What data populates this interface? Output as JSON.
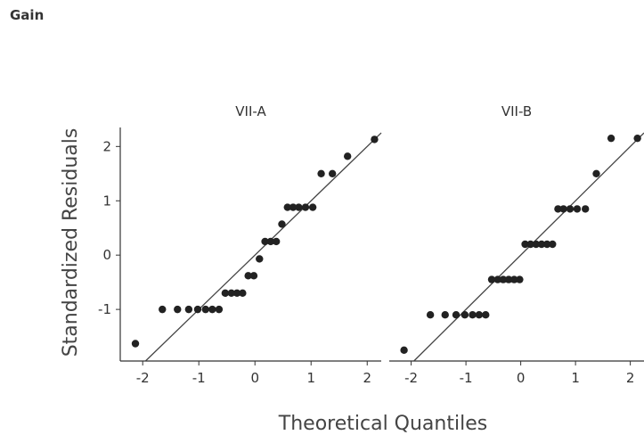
{
  "page": {
    "title": "Gain"
  },
  "chart_data": {
    "type": "scatter",
    "xlabel": "Theoretical Quantiles",
    "ylabel": "Standardized Residuals",
    "xlim": [
      -2.4,
      2.25
    ],
    "ylim": [
      -1.95,
      2.35
    ],
    "xticks": [
      -2,
      -1,
      0,
      1,
      2
    ],
    "yticks": [
      -1,
      0,
      1,
      2
    ],
    "grid": false,
    "point_color": "#222222",
    "line_color": "#444444",
    "panels": [
      {
        "title": "VII-A",
        "show_yaxis": true,
        "reference_line": {
          "slope": 1.0,
          "intercept": 0.0
        },
        "points": {
          "x": [
            -2.13,
            -1.65,
            -1.38,
            -1.18,
            -1.02,
            -0.88,
            -0.76,
            -0.64,
            -0.53,
            -0.42,
            -0.32,
            -0.22,
            -0.12,
            -0.02,
            0.08,
            0.18,
            0.28,
            0.38,
            0.48,
            0.58,
            0.68,
            0.78,
            0.9,
            1.03,
            1.18,
            1.38,
            1.65,
            2.13
          ],
          "y": [
            -1.63,
            -1.0,
            -1.0,
            -1.0,
            -1.0,
            -1.0,
            -1.0,
            -1.0,
            -0.7,
            -0.7,
            -0.7,
            -0.7,
            -0.38,
            -0.38,
            -0.07,
            0.25,
            0.25,
            0.25,
            0.57,
            0.88,
            0.88,
            0.88,
            0.88,
            0.88,
            1.5,
            1.5,
            1.82,
            2.13
          ]
        }
      },
      {
        "title": "VII-B",
        "show_yaxis": false,
        "reference_line": {
          "slope": 1.0,
          "intercept": 0.0
        },
        "points": {
          "x": [
            -2.13,
            -1.65,
            -1.38,
            -1.18,
            -1.02,
            -0.88,
            -0.76,
            -0.64,
            -0.53,
            -0.42,
            -0.32,
            -0.22,
            -0.12,
            -0.02,
            0.08,
            0.18,
            0.28,
            0.38,
            0.48,
            0.58,
            0.68,
            0.78,
            0.9,
            1.03,
            1.18,
            1.38,
            1.65,
            2.13
          ],
          "y": [
            -1.75,
            -1.1,
            -1.1,
            -1.1,
            -1.1,
            -1.1,
            -1.1,
            -1.1,
            -0.45,
            -0.45,
            -0.45,
            -0.45,
            -0.45,
            -0.45,
            0.2,
            0.2,
            0.2,
            0.2,
            0.2,
            0.2,
            0.85,
            0.85,
            0.85,
            0.85,
            0.85,
            1.5,
            2.15,
            2.15
          ]
        }
      }
    ]
  }
}
